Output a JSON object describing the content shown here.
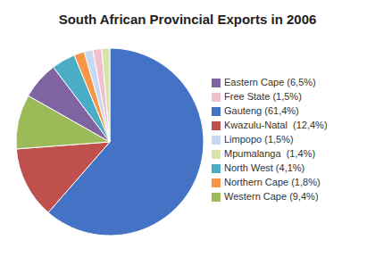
{
  "chart_data": {
    "type": "pie",
    "title": "South African Provincial Exports in 2006",
    "categories": [
      "Gauteng (61,4%)",
      "Kwazulu-Natal  (12,4%)",
      "Western Cape (9,4%)",
      "Eastern Cape (6,5%)",
      "North West (4,1%)",
      "Northern Cape (1,8%)",
      "Limpopo (1,5%)",
      "Free State (1,5%)",
      "Mpumalanga  (1,4%)"
    ],
    "values": [
      61.4,
      12.4,
      9.4,
      6.5,
      4.1,
      1.8,
      1.5,
      1.5,
      1.4
    ],
    "colors": [
      "#4472C4",
      "#C0504D",
      "#9BBB59",
      "#8064A2",
      "#4BACC6",
      "#F79646",
      "#C6D9F1",
      "#F2BFCE",
      "#D6E4AA"
    ],
    "legend": "right"
  }
}
